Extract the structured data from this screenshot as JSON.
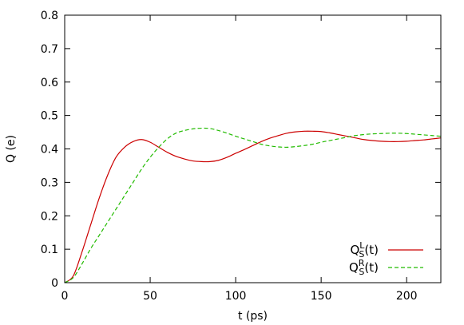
{
  "chart_data": {
    "type": "line",
    "xlabel": "t (ps)",
    "ylabel": "Q (e)",
    "xlim": [
      0,
      220
    ],
    "ylim": [
      0,
      0.8
    ],
    "x_ticks": [
      0,
      50,
      100,
      150,
      200
    ],
    "y_ticks": [
      0,
      0.1,
      0.2,
      0.3,
      0.4,
      0.5,
      0.6,
      0.7,
      0.8
    ],
    "x_tick_labels": [
      "0",
      "50",
      "100",
      "150",
      "200"
    ],
    "y_tick_labels": [
      "0",
      "0.1",
      "0.2",
      "0.3",
      "0.4",
      "0.5",
      "0.6",
      "0.7",
      "0.8"
    ],
    "grid": false,
    "legend_position": "bottom-right",
    "series": [
      {
        "name": "Q_S^L(t)",
        "legend": {
          "base": "Q",
          "sup": "L",
          "sub": "S",
          "suffix": "(t)"
        },
        "color": "#cc0000",
        "dash": "solid",
        "x": [
          0,
          5,
          10,
          15,
          20,
          25,
          30,
          35,
          40,
          45,
          50,
          55,
          60,
          65,
          70,
          75,
          80,
          85,
          90,
          95,
          100,
          105,
          110,
          115,
          120,
          125,
          130,
          135,
          140,
          145,
          150,
          155,
          160,
          165,
          170,
          175,
          180,
          185,
          190,
          195,
          200,
          205,
          210,
          215,
          220
        ],
        "y": [
          0,
          0.02,
          0.09,
          0.17,
          0.25,
          0.32,
          0.375,
          0.405,
          0.422,
          0.428,
          0.42,
          0.405,
          0.39,
          0.378,
          0.37,
          0.364,
          0.362,
          0.362,
          0.366,
          0.375,
          0.387,
          0.398,
          0.41,
          0.422,
          0.432,
          0.44,
          0.447,
          0.451,
          0.453,
          0.453,
          0.452,
          0.448,
          0.443,
          0.438,
          0.433,
          0.428,
          0.425,
          0.423,
          0.422,
          0.422,
          0.423,
          0.425,
          0.427,
          0.43,
          0.433
        ]
      },
      {
        "name": "Q_S^R(t)",
        "legend": {
          "base": "Q",
          "sup": "R",
          "sub": "S",
          "suffix": "(t)"
        },
        "color": "#22bb00",
        "dash": "dashed",
        "x": [
          0,
          5,
          10,
          15,
          20,
          25,
          30,
          35,
          40,
          45,
          50,
          55,
          60,
          65,
          70,
          75,
          80,
          85,
          90,
          95,
          100,
          105,
          110,
          115,
          120,
          125,
          130,
          135,
          140,
          145,
          150,
          155,
          160,
          165,
          170,
          175,
          180,
          185,
          190,
          195,
          200,
          205,
          210,
          215,
          220
        ],
        "y": [
          0,
          0.015,
          0.055,
          0.1,
          0.14,
          0.18,
          0.22,
          0.26,
          0.3,
          0.34,
          0.375,
          0.405,
          0.43,
          0.447,
          0.455,
          0.46,
          0.462,
          0.461,
          0.455,
          0.447,
          0.438,
          0.43,
          0.422,
          0.414,
          0.409,
          0.406,
          0.405,
          0.407,
          0.41,
          0.414,
          0.42,
          0.425,
          0.43,
          0.435,
          0.44,
          0.443,
          0.445,
          0.446,
          0.447,
          0.447,
          0.446,
          0.444,
          0.442,
          0.44,
          0.438
        ]
      }
    ]
  }
}
